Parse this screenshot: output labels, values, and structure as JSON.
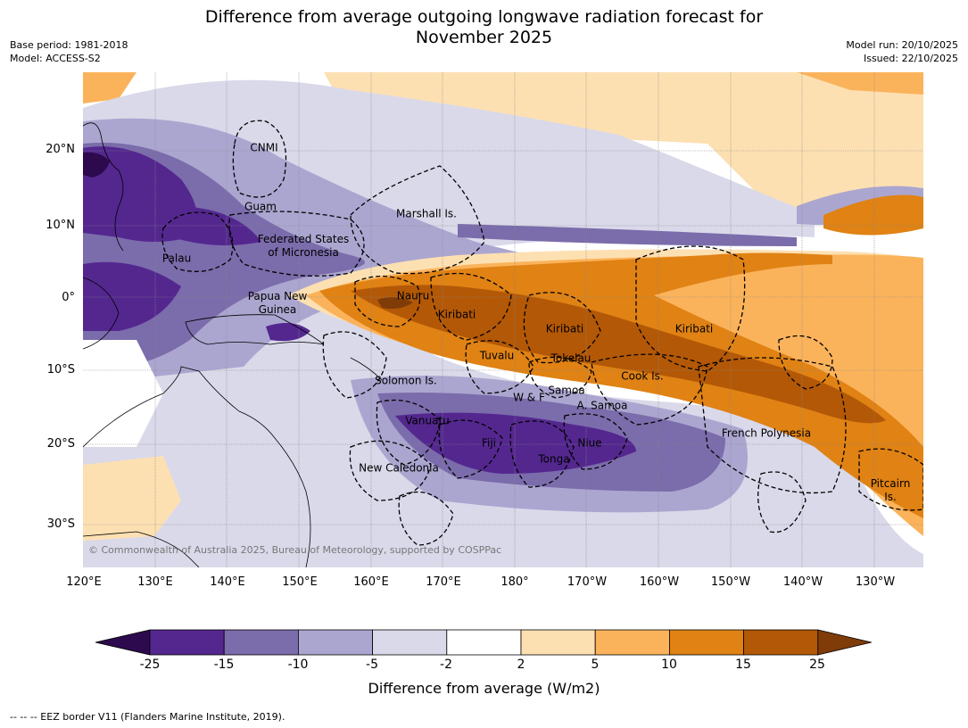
{
  "title": {
    "line1": "Difference from average outgoing longwave radiation forecast for",
    "line2": "November 2025"
  },
  "meta_left": {
    "base_period": "Base period: 1981-2018",
    "model": "Model: ACCESS-S2"
  },
  "meta_right": {
    "model_run": "Model run: 20/10/2025",
    "issued": "Issued: 22/10/2025"
  },
  "lat_ticks": [
    "20°N",
    "10°N",
    "0°",
    "10°S",
    "20°S",
    "30°S"
  ],
  "lon_ticks": [
    "120°E",
    "130°E",
    "140°E",
    "150°E",
    "160°E",
    "170°E",
    "180°",
    "170°W",
    "160°W",
    "150°W",
    "140°W",
    "130°W"
  ],
  "regions": {
    "cnmi": "CNMI",
    "guam": "Guam",
    "marshall": "Marshall Is.",
    "fsm_line1": "Federated States",
    "fsm_line2": "of Micronesia",
    "palau": "Palau",
    "nauru": "Nauru",
    "png_line1": "Papua New",
    "png_line2": "Guinea",
    "kiribati_w": "Kiribati",
    "kiribati_c": "Kiribati",
    "kiribati_e": "Kiribati",
    "tuvalu": "Tuvalu",
    "tokelau": "Tokelau",
    "cook": "Cook Is.",
    "solomon": "Solomon Is.",
    "samoa": "Samoa",
    "wf": "W & F",
    "asamoa": "A. Samoa",
    "vanuatu": "Vanuatu",
    "fiji": "Fiji",
    "niue": "Niue",
    "tonga": "Tonga",
    "french_polynesia": "French Polynesia",
    "new_caledonia": "New Caledonia",
    "pitcairn_line1": "Pitcairn",
    "pitcairn_line2": "Is."
  },
  "copyright": "© Commonwealth of Australia 2025, Bureau of Meteorology, supported by COSPPac",
  "colorbar": {
    "ticks": [
      "-25",
      "-15",
      "-10",
      "-5",
      "-2",
      "2",
      "5",
      "10",
      "15",
      "25"
    ],
    "colors": [
      "#2d0a4e",
      "#54278f",
      "#7b6cab",
      "#aba6d0",
      "#dad9ea",
      "#ffffff",
      "#fde0b2",
      "#fbb35b",
      "#e08214",
      "#b35806",
      "#7f3b08"
    ],
    "title": "Difference from average (W/m2)"
  },
  "footnote": "--  --  -- EEZ border V11 (Flanders Marine Institute, 2019)."
}
